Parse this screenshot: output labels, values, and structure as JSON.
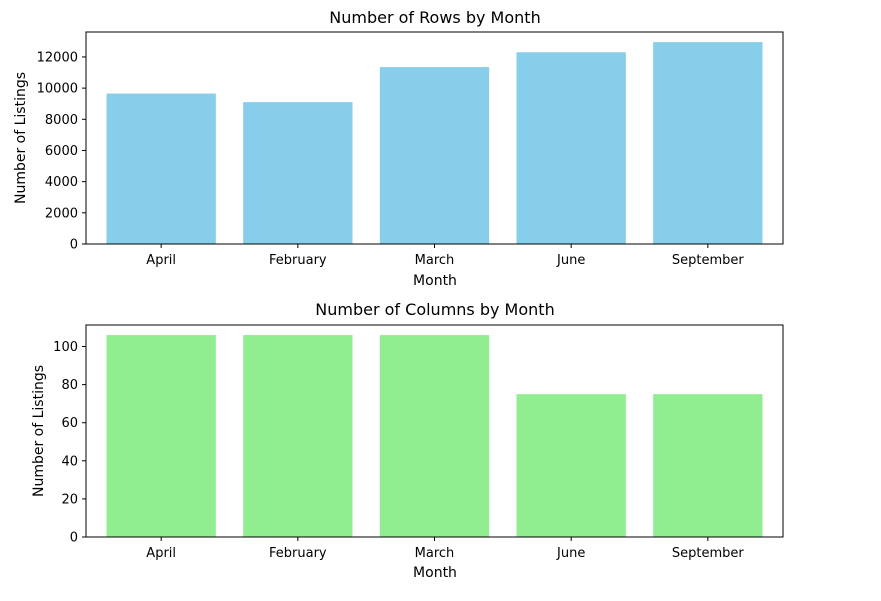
{
  "chart_data": [
    {
      "type": "bar",
      "title": "Number of Rows by Month",
      "xlabel": "Month",
      "ylabel": "Number of Listings",
      "categories": [
        "April",
        "February",
        "March",
        "June",
        "September"
      ],
      "values": [
        9650,
        9100,
        11350,
        12300,
        12950
      ],
      "ylim": [
        0,
        13600
      ],
      "yticks": [
        0,
        2000,
        4000,
        6000,
        8000,
        10000,
        12000
      ],
      "color": "#87ceeb",
      "grid": false,
      "legend": "none"
    },
    {
      "type": "bar",
      "title": "Number of Columns by Month",
      "xlabel": "Month",
      "ylabel": "Number of Listings",
      "categories": [
        "April",
        "February",
        "March",
        "June",
        "September"
      ],
      "values": [
        106,
        106,
        106,
        75,
        75
      ],
      "ylim": [
        0,
        111.3
      ],
      "yticks": [
        0,
        20,
        40,
        60,
        80,
        100
      ],
      "color": "#90ee90",
      "grid": false,
      "legend": "none"
    }
  ]
}
